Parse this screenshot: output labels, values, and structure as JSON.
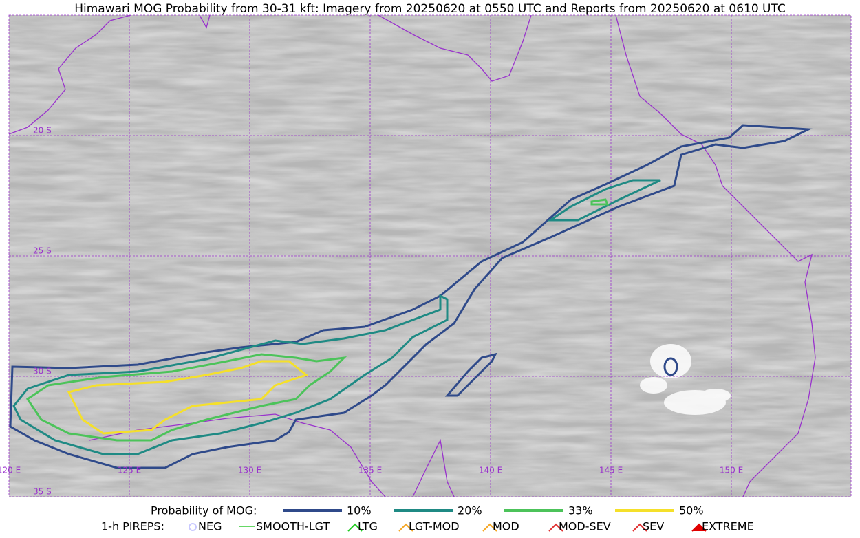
{
  "header": {
    "title": "Himawari MOG Probability from 30-31 kft: Imagery from 20250620 at 0550 UTC and Reports from 20250620 at 0610 UTC"
  },
  "map": {
    "latitude_labels": [
      "20 S",
      "25 S",
      "30 S",
      "35 S"
    ],
    "longitude_labels": [
      "120 E",
      "125 E",
      "130 E",
      "135 E",
      "140 E",
      "145 E",
      "150 E"
    ]
  },
  "legend": {
    "probability": {
      "label": "Probability of MOG:",
      "items": [
        "10%",
        "20%",
        "33%",
        "50%"
      ]
    },
    "pireps": {
      "label": "1-h PIREPS:",
      "items": [
        "NEG",
        "SMOOTH-LGT",
        "LTG",
        "LGT-MOD",
        "MOD",
        "MOD-SEV",
        "SEV",
        "EXTREME"
      ]
    }
  }
}
